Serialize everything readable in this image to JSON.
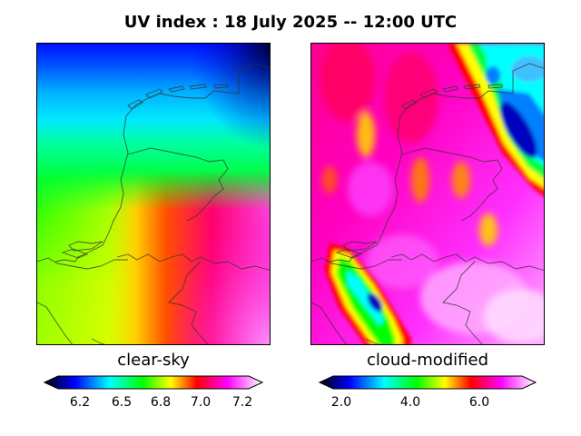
{
  "title": "UV index :  18 July 2025  --  12:00 UTC",
  "panels": [
    {
      "label": "clear-sky",
      "colorbar_ticks": [
        "6.2",
        "6.5",
        "6.8",
        "7.0",
        "7.2"
      ]
    },
    {
      "label": "cloud-modified",
      "colorbar_ticks": [
        "2.0",
        "4.0",
        "6.0"
      ]
    }
  ],
  "colorbar_colors": [
    "#000000",
    "#0000ff",
    "#00ffff",
    "#00ff00",
    "#ffff00",
    "#ff0000",
    "#ff00ff",
    "#ffffff"
  ],
  "map_region": "Netherlands coastline and borders"
}
